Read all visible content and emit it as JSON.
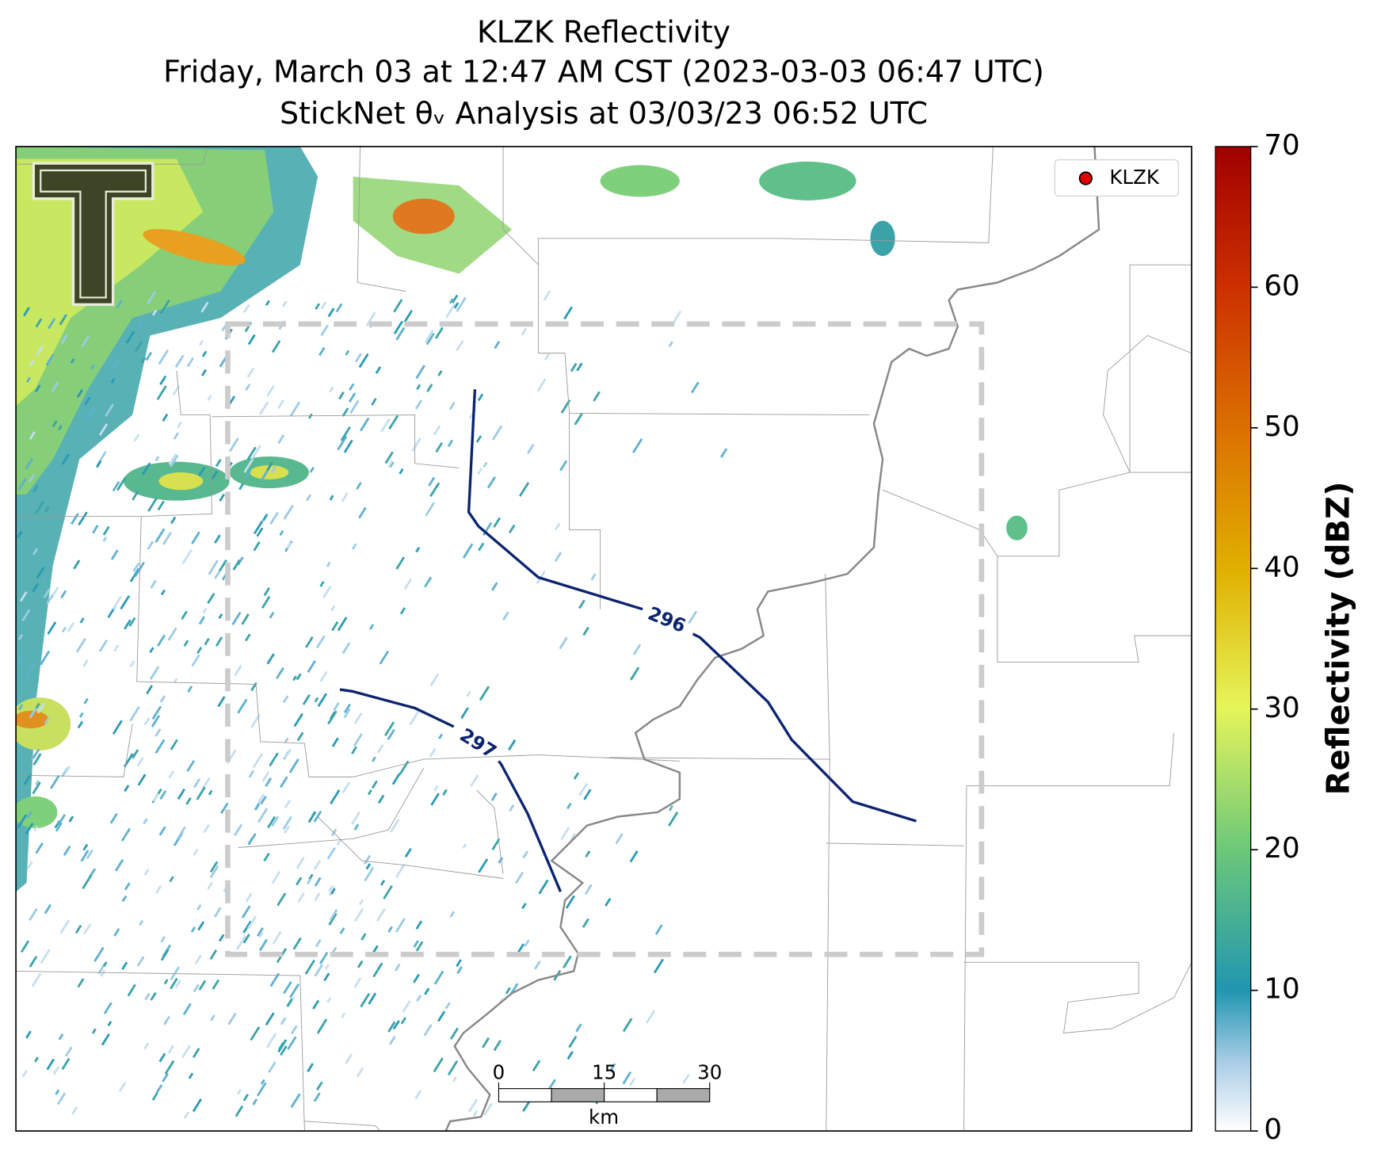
{
  "title": "KLZK Reflectivity",
  "subtitle": "Friday, March 03 at 12:47 AM CST (2023-03-03 06:47 UTC)",
  "analysis": "StickNet θᵥ Analysis at 03/03/23 06:52 UTC",
  "legend": {
    "label": "KLZK",
    "color": "#e00000"
  },
  "contours": [
    {
      "label": "296"
    },
    {
      "label": "297"
    }
  ],
  "colorbar": {
    "label": "Reflectivity (dBZ)",
    "lim": [
      0,
      70
    ],
    "ticks": [
      0,
      10,
      20,
      30,
      40,
      50,
      60,
      70
    ]
  },
  "scalebar": {
    "unit": "km",
    "lim": [
      0,
      30
    ],
    "ticks": [
      0,
      15,
      30
    ]
  }
}
